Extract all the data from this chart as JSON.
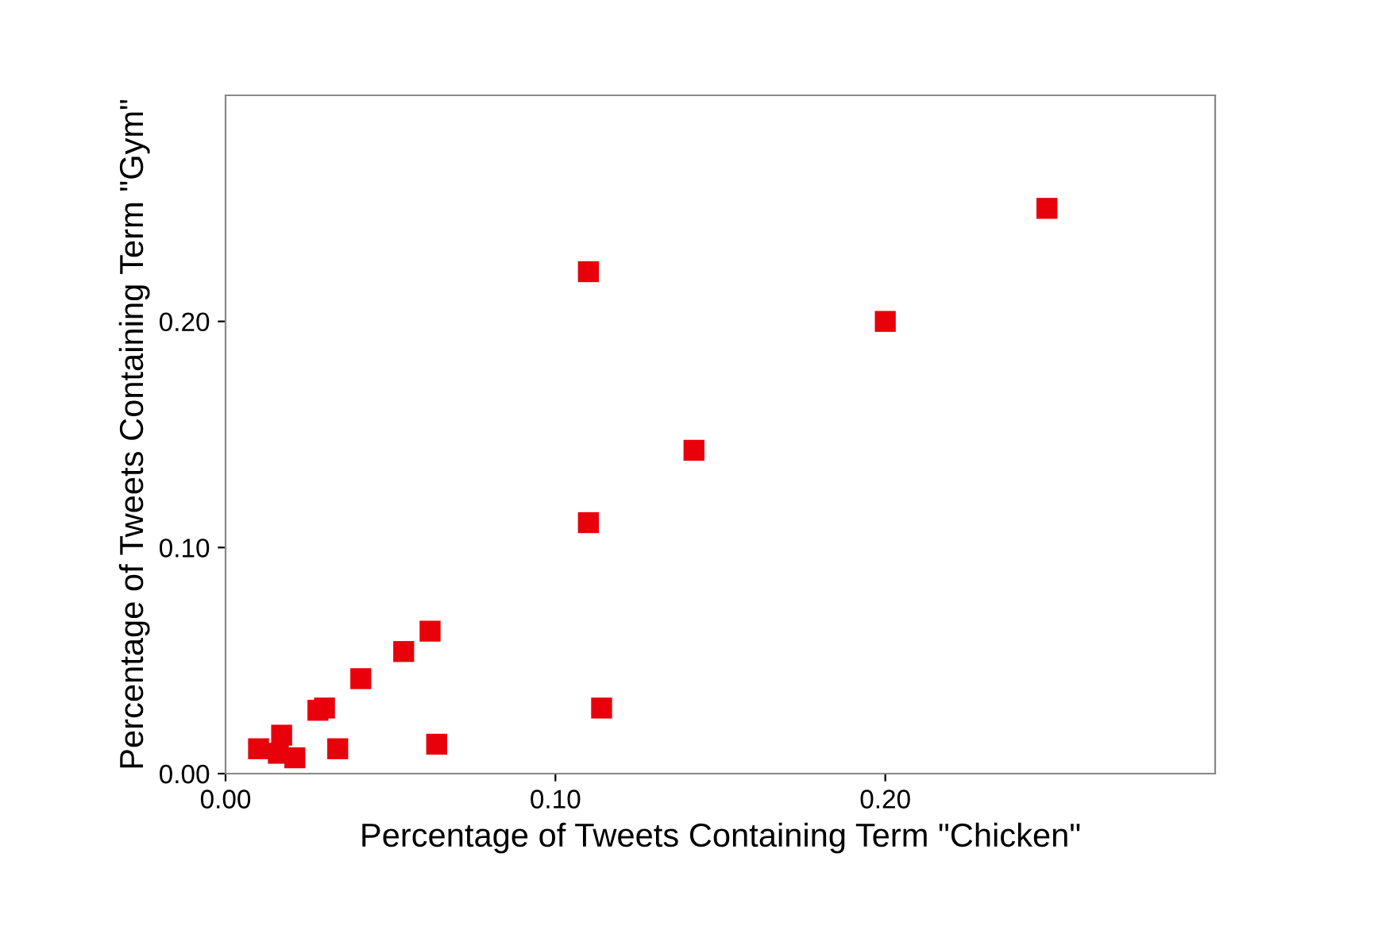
{
  "chart_data": {
    "type": "scatter",
    "xlabel": "Percentage of Tweets Containing Term \"Chicken\"",
    "ylabel": "Percentage of Tweets Containing Term \"Gym\"",
    "x": [
      0.01,
      0.017,
      0.016,
      0.021,
      0.028,
      0.03,
      0.034,
      0.041,
      0.054,
      0.062,
      0.064,
      0.11,
      0.11,
      0.114,
      0.142,
      0.2,
      0.249
    ],
    "series": [
      {
        "color": "#e8000b",
        "values": [
          0.011,
          0.017,
          0.009,
          0.007,
          0.028,
          0.029,
          0.011,
          0.042,
          0.054,
          0.063,
          0.013,
          0.222,
          0.111,
          0.029,
          0.143,
          0.2,
          0.25
        ]
      }
    ],
    "marker": "square",
    "xlim": [
      0,
      0.3
    ],
    "ylim": [
      0,
      0.3
    ],
    "xticks": [
      {
        "value": 0,
        "label": "0.00"
      },
      {
        "value": 0.1,
        "label": "0.10"
      },
      {
        "value": 0.2,
        "label": "0.20"
      }
    ],
    "yticks": [
      {
        "value": 0,
        "label": "0.00"
      },
      {
        "value": 0.1,
        "label": "0.10"
      },
      {
        "value": 0.2,
        "label": "0.20"
      }
    ],
    "grid": false,
    "legend": false
  }
}
